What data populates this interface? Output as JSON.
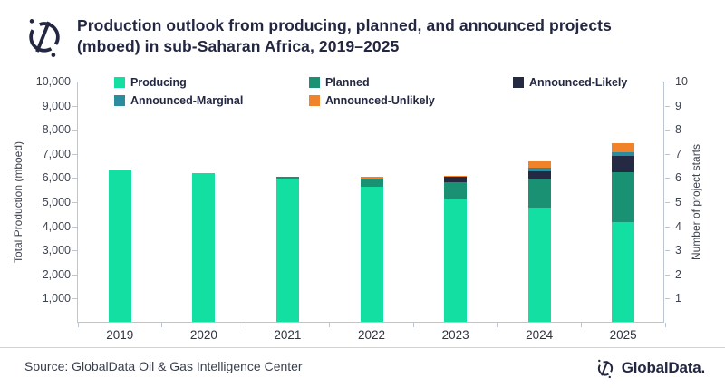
{
  "header": {
    "logo_icon": "globaldata-compass-icon",
    "title_line1": "Production outlook from producing, planned, and announced projects",
    "title_line2": "(mboed) in sub-Saharan Africa, 2019–2025"
  },
  "chart_data": {
    "type": "bar",
    "stacked": true,
    "title": "Production outlook from producing, planned, and announced projects (mboed) in sub-Saharan Africa, 2019–2025",
    "categories": [
      "2019",
      "2020",
      "2021",
      "2022",
      "2023",
      "2024",
      "2025"
    ],
    "series": [
      {
        "name": "Producing",
        "color": "#13dfa2",
        "values": [
          6300,
          6150,
          5900,
          5600,
          5100,
          4750,
          4150
        ]
      },
      {
        "name": "Planned",
        "color": "#1a9173",
        "values": [
          0,
          0,
          100,
          300,
          700,
          1200,
          2050
        ]
      },
      {
        "name": "Announced-Likely",
        "color": "#252a44",
        "values": [
          0,
          0,
          0,
          50,
          200,
          300,
          700
        ]
      },
      {
        "name": "Announced-Marginal",
        "color": "#2b8c9f",
        "values": [
          0,
          0,
          0,
          0,
          0,
          150,
          150
        ]
      },
      {
        "name": "Announced-Unlikely",
        "color": "#f08229",
        "values": [
          0,
          0,
          0,
          50,
          50,
          250,
          350
        ]
      }
    ],
    "y_left": {
      "label": "Total Production (mboed)",
      "min": 0,
      "max": 10000,
      "step": 1000
    },
    "y_right": {
      "label": "Number of project starts",
      "min": 0,
      "max": 10,
      "step": 1
    },
    "legend_position": "top-inside",
    "grid": false
  },
  "axes_ticks": {
    "left_ascending": [
      "1,000",
      "2,000",
      "3,000",
      "4,000",
      "5,000",
      "6,000",
      "7,000",
      "8,000",
      "9,000",
      "10,000"
    ],
    "right_ascending": [
      "1",
      "2",
      "3",
      "4",
      "5",
      "6",
      "7",
      "8",
      "9",
      "10"
    ]
  },
  "footer": {
    "source": "Source: GlobalData Oil & Gas Intelligence Center",
    "brand": "GlobalData."
  },
  "colors": {
    "title_navy": "#232741",
    "axis_line": "#bcc6d2",
    "axis_text": "#3e4350"
  }
}
